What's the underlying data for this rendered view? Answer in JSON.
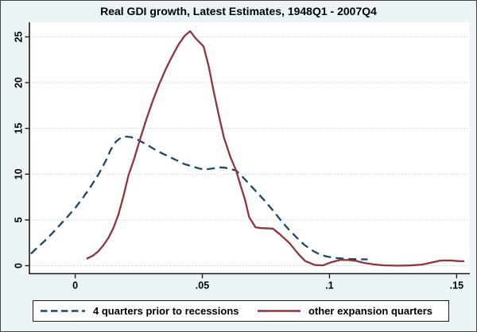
{
  "window": {
    "border_color": "#454545",
    "background_dot_color": "#aecfdd",
    "plot_background": "#ffffff"
  },
  "chart_data": {
    "type": "line",
    "title": "Real GDI growth, Latest Estimates, 1948Q1 - 2007Q4",
    "xlabel": "",
    "ylabel": "",
    "xlim": [
      -0.018,
      0.1552
    ],
    "ylim": [
      -0.87,
      26.6
    ],
    "xticks": [
      0,
      0.05,
      0.1,
      0.15
    ],
    "xtick_labels": [
      "0",
      ".05",
      ".1",
      ".15"
    ],
    "yticks": [
      0,
      5,
      10,
      15,
      20,
      25
    ],
    "ytick_labels": [
      "0",
      "5",
      "10",
      "15",
      "20",
      "25"
    ],
    "grid": "horizontal-dotted",
    "gridline_color": "#a5cbd9",
    "axis_color": "#1d1d1d",
    "legend_position": "bottom",
    "series": [
      {
        "name": "4 quarters prior to recessions",
        "color": "#1a476f",
        "line_style": "dashed",
        "points": [
          [
            -0.0174,
            1.3
          ],
          [
            -0.015,
            1.95
          ],
          [
            -0.012,
            2.7
          ],
          [
            -0.009,
            3.55
          ],
          [
            -0.006,
            4.45
          ],
          [
            -0.003,
            5.35
          ],
          [
            0.0,
            6.3
          ],
          [
            0.003,
            7.4
          ],
          [
            0.006,
            8.6
          ],
          [
            0.009,
            9.9
          ],
          [
            0.012,
            11.45
          ],
          [
            0.014,
            12.7
          ],
          [
            0.016,
            13.55
          ],
          [
            0.018,
            14.0
          ],
          [
            0.02,
            14.1
          ],
          [
            0.022,
            14.05
          ],
          [
            0.025,
            13.7
          ],
          [
            0.028,
            13.25
          ],
          [
            0.031,
            12.75
          ],
          [
            0.034,
            12.3
          ],
          [
            0.037,
            11.9
          ],
          [
            0.04,
            11.5
          ],
          [
            0.043,
            11.1
          ],
          [
            0.046,
            10.85
          ],
          [
            0.049,
            10.6
          ],
          [
            0.051,
            10.5
          ],
          [
            0.054,
            10.62
          ],
          [
            0.057,
            10.73
          ],
          [
            0.059,
            10.7
          ],
          [
            0.061,
            10.55
          ],
          [
            0.0633,
            10.4
          ],
          [
            0.066,
            9.65
          ],
          [
            0.069,
            8.75
          ],
          [
            0.072,
            7.85
          ],
          [
            0.075,
            6.95
          ],
          [
            0.078,
            5.95
          ],
          [
            0.081,
            4.9
          ],
          [
            0.084,
            3.95
          ],
          [
            0.087,
            3.1
          ],
          [
            0.09,
            2.3
          ],
          [
            0.093,
            1.7
          ],
          [
            0.096,
            1.25
          ],
          [
            0.099,
            1.0
          ],
          [
            0.102,
            0.85
          ],
          [
            0.106,
            0.75
          ],
          [
            0.11,
            0.71
          ],
          [
            0.115,
            0.68
          ]
        ]
      },
      {
        "name": "other expansion quarters",
        "color": "#90353b",
        "line_style": "solid",
        "points": [
          [
            0.0045,
            0.75
          ],
          [
            0.007,
            1.1
          ],
          [
            0.009,
            1.55
          ],
          [
            0.011,
            2.2
          ],
          [
            0.013,
            3.0
          ],
          [
            0.015,
            4.1
          ],
          [
            0.017,
            5.6
          ],
          [
            0.019,
            7.6
          ],
          [
            0.021,
            9.9
          ],
          [
            0.023,
            11.5
          ],
          [
            0.0255,
            13.8
          ],
          [
            0.028,
            16.0
          ],
          [
            0.0305,
            18.0
          ],
          [
            0.033,
            19.8
          ],
          [
            0.0355,
            21.4
          ],
          [
            0.038,
            22.8
          ],
          [
            0.0405,
            24.1
          ],
          [
            0.043,
            25.1
          ],
          [
            0.0452,
            25.62
          ],
          [
            0.0475,
            24.8
          ],
          [
            0.0505,
            23.95
          ],
          [
            0.0525,
            21.8
          ],
          [
            0.0545,
            19.0
          ],
          [
            0.0565,
            16.4
          ],
          [
            0.0585,
            14.0
          ],
          [
            0.061,
            11.9
          ],
          [
            0.0633,
            10.4
          ],
          [
            0.065,
            8.8
          ],
          [
            0.0668,
            7.2
          ],
          [
            0.0684,
            5.3
          ],
          [
            0.0709,
            4.2
          ],
          [
            0.073,
            4.1
          ],
          [
            0.0777,
            4.05
          ],
          [
            0.0802,
            3.5
          ],
          [
            0.0843,
            2.45
          ],
          [
            0.088,
            1.2
          ],
          [
            0.0905,
            0.5
          ],
          [
            0.0942,
            0.08
          ],
          [
            0.0975,
            0.03
          ],
          [
            0.1005,
            0.35
          ],
          [
            0.1042,
            0.62
          ],
          [
            0.1073,
            0.61
          ],
          [
            0.1105,
            0.52
          ],
          [
            0.1136,
            0.3
          ],
          [
            0.1177,
            0.13
          ],
          [
            0.1217,
            0.03
          ],
          [
            0.127,
            0.0
          ],
          [
            0.1317,
            0.02
          ],
          [
            0.1364,
            0.12
          ],
          [
            0.1395,
            0.3
          ],
          [
            0.1436,
            0.55
          ],
          [
            0.1473,
            0.57
          ],
          [
            0.1505,
            0.5
          ],
          [
            0.153,
            0.48
          ]
        ]
      }
    ]
  }
}
